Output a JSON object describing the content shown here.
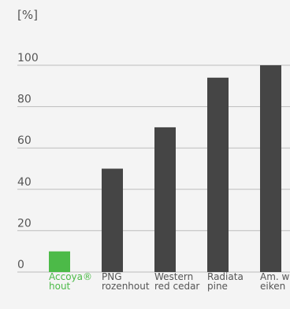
{
  "chart_data": {
    "type": "bar",
    "unit_label": "[%]",
    "categories": [
      [
        "Accoya®",
        "hout"
      ],
      [
        "PNG",
        "rozenhout"
      ],
      [
        "Western",
        "red cedar"
      ],
      [
        "Radiata",
        "pine"
      ],
      [
        "Am. w",
        "eiken"
      ]
    ],
    "values": [
      10,
      50,
      70,
      94,
      100
    ],
    "highlight_index": 0,
    "y_ticks": [
      0,
      20,
      40,
      60,
      80,
      100
    ],
    "ylim": [
      0,
      100
    ],
    "grid": true,
    "legend": "none",
    "colors": {
      "highlight": "#4cba48",
      "bar": "#454545",
      "grid": "#bdbdbd",
      "text": "#555555",
      "background": "#f4f4f4"
    }
  }
}
